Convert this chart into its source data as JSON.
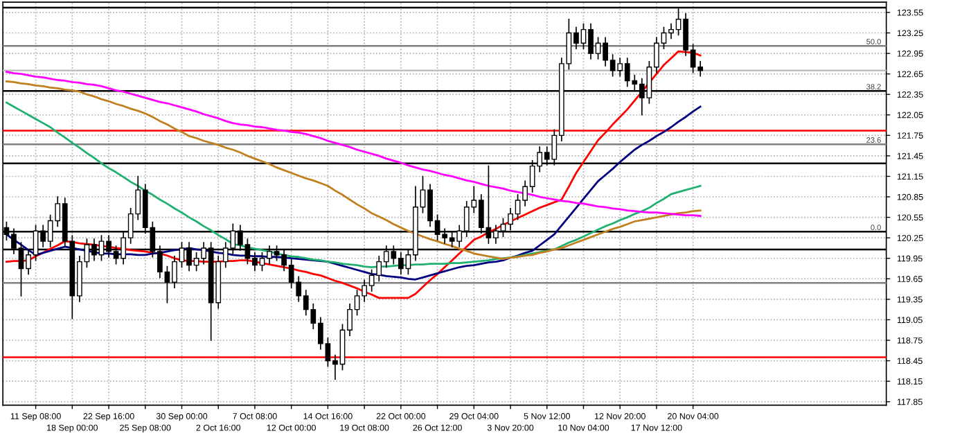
{
  "chart_data": {
    "type": "candlestick",
    "categories": [
      null,
      null,
      null,
      null,
      "11 Sep 08:00",
      null,
      null,
      null,
      null,
      "18 Sep 00:00",
      null,
      null,
      null,
      null,
      "22 Sep 16:00",
      null,
      null,
      null,
      null,
      "25 Sep 08:00",
      null,
      null,
      null,
      null,
      "30 Sep 00:00",
      null,
      null,
      null,
      null,
      "2 Oct 16:00",
      null,
      null,
      null,
      null,
      "7 Oct 08:00",
      null,
      null,
      null,
      null,
      "12 Oct 00:00",
      null,
      null,
      null,
      null,
      "14 Oct 16:00",
      null,
      null,
      null,
      null,
      "19 Oct 08:00",
      null,
      null,
      null,
      null,
      "22 Oct 00:00",
      null,
      null,
      null,
      null,
      "26 Oct 12:00",
      null,
      null,
      null,
      null,
      "29 Oct 04:00",
      null,
      null,
      null,
      null,
      "3 Nov 20:00",
      null,
      null,
      null,
      null,
      "5 Nov 12:00",
      null,
      null,
      null,
      null,
      "10 Nov 04:00",
      null,
      null,
      null,
      null,
      "12 Nov 20:00",
      null,
      null,
      null,
      null,
      "17 Nov 12:00",
      null,
      null,
      null,
      null,
      "20 Nov 04:00",
      null
    ],
    "color": "#000000",
    "ohlc": [
      [
        120.4,
        120.48,
        120.22,
        120.3
      ],
      [
        120.3,
        120.38,
        120.02,
        120.1
      ],
      [
        120.1,
        120.18,
        119.4,
        119.8
      ],
      [
        119.8,
        120.08,
        119.72,
        120.0
      ],
      [
        120.0,
        120.43,
        119.92,
        120.35
      ],
      [
        120.35,
        120.43,
        120.12,
        120.2
      ],
      [
        120.2,
        120.58,
        120.12,
        120.5
      ],
      [
        120.5,
        120.85,
        120.42,
        120.75
      ],
      [
        120.75,
        120.83,
        120.12,
        120.2
      ],
      [
        120.2,
        120.28,
        119.07,
        119.4
      ],
      [
        119.4,
        119.98,
        119.32,
        119.9
      ],
      [
        119.9,
        120.23,
        119.82,
        120.15
      ],
      [
        120.15,
        120.23,
        119.92,
        120.0
      ],
      [
        120.0,
        120.28,
        119.92,
        120.2
      ],
      [
        120.2,
        120.28,
        119.97,
        120.05
      ],
      [
        120.05,
        120.13,
        119.87,
        119.95
      ],
      [
        119.95,
        120.33,
        119.87,
        120.25
      ],
      [
        120.25,
        120.68,
        120.17,
        120.6
      ],
      [
        120.6,
        121.15,
        120.52,
        120.95
      ],
      [
        120.95,
        121.03,
        120.32,
        120.4
      ],
      [
        120.4,
        120.48,
        119.97,
        120.05
      ],
      [
        120.05,
        120.13,
        119.67,
        119.75
      ],
      [
        119.75,
        119.83,
        119.3,
        119.6
      ],
      [
        119.6,
        119.98,
        119.52,
        119.9
      ],
      [
        119.9,
        120.18,
        119.82,
        120.1
      ],
      [
        120.1,
        120.18,
        119.77,
        119.85
      ],
      [
        119.85,
        120.03,
        119.77,
        119.95
      ],
      [
        119.95,
        120.18,
        119.87,
        120.1
      ],
      [
        120.1,
        120.18,
        118.75,
        119.3
      ],
      [
        119.3,
        119.98,
        119.22,
        119.9
      ],
      [
        119.9,
        120.18,
        119.82,
        120.1
      ],
      [
        120.1,
        120.45,
        120.02,
        120.35
      ],
      [
        120.35,
        120.43,
        120.07,
        120.15
      ],
      [
        120.15,
        120.23,
        119.87,
        119.95
      ],
      [
        119.95,
        120.03,
        119.77,
        119.85
      ],
      [
        119.85,
        120.03,
        119.77,
        119.95
      ],
      [
        119.95,
        120.13,
        119.87,
        120.05
      ],
      [
        120.05,
        120.13,
        119.92,
        120.0
      ],
      [
        120.0,
        120.08,
        119.77,
        119.85
      ],
      [
        119.85,
        119.93,
        119.52,
        119.6
      ],
      [
        119.6,
        119.68,
        119.32,
        119.4
      ],
      [
        119.4,
        119.48,
        119.12,
        119.2
      ],
      [
        119.2,
        119.28,
        118.92,
        119.0
      ],
      [
        119.0,
        119.08,
        118.62,
        118.7
      ],
      [
        118.7,
        118.78,
        118.37,
        118.45
      ],
      [
        118.45,
        118.53,
        118.18,
        118.4
      ],
      [
        118.4,
        118.98,
        118.32,
        118.9
      ],
      [
        118.9,
        119.28,
        118.82,
        119.2
      ],
      [
        119.2,
        119.48,
        119.12,
        119.4
      ],
      [
        119.4,
        119.63,
        119.32,
        119.55
      ],
      [
        119.55,
        119.78,
        119.47,
        119.7
      ],
      [
        119.7,
        119.98,
        119.62,
        119.9
      ],
      [
        119.9,
        120.13,
        119.82,
        120.05
      ],
      [
        120.05,
        120.13,
        119.87,
        119.95
      ],
      [
        119.95,
        120.03,
        119.72,
        119.8
      ],
      [
        119.8,
        120.08,
        119.72,
        120.0
      ],
      [
        120.0,
        121.0,
        119.92,
        120.7
      ],
      [
        120.7,
        121.15,
        120.62,
        120.95
      ],
      [
        120.95,
        121.03,
        120.42,
        120.5
      ],
      [
        120.5,
        120.58,
        120.22,
        120.3
      ],
      [
        120.3,
        120.38,
        120.17,
        120.25
      ],
      [
        120.25,
        120.33,
        120.12,
        120.2
      ],
      [
        120.2,
        120.43,
        120.12,
        120.35
      ],
      [
        120.35,
        120.78,
        120.27,
        120.7
      ],
      [
        120.7,
        121.0,
        120.62,
        120.8
      ],
      [
        120.8,
        120.88,
        120.32,
        120.4
      ],
      [
        120.4,
        121.3,
        120.17,
        120.25
      ],
      [
        120.25,
        120.43,
        120.17,
        120.35
      ],
      [
        120.35,
        120.53,
        120.27,
        120.45
      ],
      [
        120.45,
        120.68,
        120.37,
        120.6
      ],
      [
        120.6,
        120.88,
        120.52,
        120.8
      ],
      [
        120.8,
        121.08,
        120.72,
        121.0
      ],
      [
        121.0,
        121.38,
        120.92,
        121.3
      ],
      [
        121.3,
        121.58,
        121.22,
        121.5
      ],
      [
        121.5,
        121.58,
        121.32,
        121.4
      ],
      [
        121.4,
        121.83,
        121.32,
        121.75
      ],
      [
        121.75,
        122.88,
        121.67,
        122.8
      ],
      [
        122.8,
        123.45,
        122.72,
        123.25
      ],
      [
        123.25,
        123.33,
        123.02,
        123.1
      ],
      [
        123.1,
        123.38,
        123.02,
        123.3
      ],
      [
        123.3,
        123.38,
        122.87,
        122.95
      ],
      [
        122.95,
        123.18,
        122.87,
        123.1
      ],
      [
        123.1,
        123.18,
        122.77,
        122.85
      ],
      [
        122.85,
        122.93,
        122.62,
        122.7
      ],
      [
        122.7,
        122.88,
        122.62,
        122.8
      ],
      [
        122.8,
        122.88,
        122.47,
        122.55
      ],
      [
        122.55,
        122.63,
        122.42,
        122.5
      ],
      [
        122.5,
        122.58,
        122.05,
        122.3
      ],
      [
        122.3,
        122.83,
        122.22,
        122.75
      ],
      [
        122.75,
        123.18,
        122.67,
        123.1
      ],
      [
        123.1,
        123.33,
        123.02,
        123.25
      ],
      [
        123.25,
        123.38,
        123.17,
        123.3
      ],
      [
        123.3,
        123.6,
        123.22,
        123.45
      ],
      [
        123.45,
        123.53,
        122.92,
        123.0
      ],
      [
        123.0,
        123.08,
        122.67,
        122.75
      ],
      [
        122.75,
        122.83,
        122.62,
        122.7
      ]
    ],
    "series": [
      {
        "type": "line",
        "color": "#ff0000",
        "values": [
          119.9,
          119.91,
          119.91,
          119.92,
          119.98,
          120.03,
          120.09,
          120.14,
          120.2,
          120.19,
          120.17,
          120.16,
          120.15,
          120.13,
          120.12,
          120.1,
          120.09,
          120.07,
          120.06,
          120.05,
          120.03,
          120.02,
          119.99,
          119.95,
          119.92,
          119.91,
          119.91,
          119.9,
          119.9,
          119.9,
          119.91,
          119.91,
          119.92,
          119.92,
          119.9,
          119.88,
          119.86,
          119.84,
          119.82,
          119.8,
          119.77,
          119.75,
          119.72,
          119.7,
          119.66,
          119.62,
          119.59,
          119.55,
          119.51,
          119.46,
          119.42,
          119.37,
          119.37,
          119.37,
          119.37,
          119.37,
          119.43,
          119.53,
          119.63,
          119.72,
          119.82,
          119.92,
          120.02,
          120.12,
          120.22,
          120.27,
          120.33,
          120.38,
          120.44,
          120.49,
          120.54,
          120.59,
          120.64,
          120.69,
          120.73,
          120.77,
          120.81,
          121.0,
          121.2,
          121.36,
          121.52,
          121.68,
          121.79,
          121.91,
          122.02,
          122.13,
          122.26,
          122.39,
          122.52,
          122.65,
          122.78,
          122.88,
          122.98,
          122.97,
          122.96,
          122.92
        ]
      },
      {
        "type": "line",
        "color": "#000080",
        "values": [
          120.3,
          120.22,
          120.15,
          120.07,
          120.0,
          120.03,
          120.06,
          120.09,
          120.12,
          120.1,
          120.08,
          120.06,
          120.04,
          120.02,
          120.02,
          120.01,
          120.01,
          120.01,
          120.0,
          120.0,
          120.02,
          120.03,
          120.05,
          120.07,
          120.08,
          120.1,
          120.08,
          120.07,
          120.05,
          120.03,
          120.02,
          120.0,
          119.99,
          119.99,
          119.98,
          119.98,
          119.97,
          119.97,
          119.96,
          119.95,
          119.94,
          119.93,
          119.92,
          119.91,
          119.9,
          119.87,
          119.84,
          119.81,
          119.78,
          119.75,
          119.72,
          119.71,
          119.69,
          119.68,
          119.67,
          119.65,
          119.64,
          119.67,
          119.7,
          119.73,
          119.76,
          119.79,
          119.82,
          119.84,
          119.85,
          119.87,
          119.89,
          119.9,
          119.92,
          119.96,
          119.99,
          120.03,
          120.06,
          120.14,
          120.22,
          120.3,
          120.43,
          120.56,
          120.69,
          120.82,
          120.95,
          121.08,
          121.17,
          121.26,
          121.36,
          121.45,
          121.54,
          121.61,
          121.67,
          121.74,
          121.8,
          121.87,
          121.95,
          122.02,
          122.1,
          122.17
        ]
      },
      {
        "type": "line",
        "color": "#20b070",
        "values": [
          122.23,
          122.17,
          122.11,
          122.05,
          121.99,
          121.93,
          121.87,
          121.79,
          121.72,
          121.64,
          121.57,
          121.49,
          121.42,
          121.34,
          121.27,
          121.21,
          121.14,
          121.07,
          121.01,
          120.94,
          120.88,
          120.81,
          120.75,
          120.68,
          120.62,
          120.55,
          120.49,
          120.42,
          120.36,
          120.29,
          120.23,
          120.16,
          120.14,
          120.11,
          120.09,
          120.07,
          120.05,
          120.02,
          120.0,
          119.98,
          119.97,
          119.95,
          119.93,
          119.92,
          119.9,
          119.89,
          119.87,
          119.86,
          119.85,
          119.83,
          119.82,
          119.83,
          119.83,
          119.84,
          119.85,
          119.85,
          119.86,
          119.86,
          119.87,
          119.87,
          119.87,
          119.88,
          119.88,
          119.89,
          119.9,
          119.91,
          119.92,
          119.94,
          119.95,
          119.96,
          119.98,
          120.0,
          120.02,
          120.04,
          120.06,
          120.08,
          120.13,
          120.18,
          120.22,
          120.27,
          120.32,
          120.37,
          120.42,
          120.46,
          120.51,
          120.55,
          120.6,
          120.64,
          120.69,
          120.76,
          120.82,
          120.89,
          120.92,
          120.95,
          120.98,
          121.01
        ]
      },
      {
        "type": "line",
        "color": "#c08020",
        "values": [
          122.54,
          122.53,
          122.51,
          122.5,
          122.48,
          122.47,
          122.45,
          122.44,
          122.42,
          122.41,
          122.39,
          122.35,
          122.32,
          122.28,
          122.25,
          122.21,
          122.18,
          122.14,
          122.11,
          122.07,
          122.02,
          121.96,
          121.91,
          121.85,
          121.8,
          121.74,
          121.71,
          121.67,
          121.64,
          121.61,
          121.57,
          121.54,
          121.5,
          121.45,
          121.41,
          121.37,
          121.33,
          121.28,
          121.24,
          121.2,
          121.16,
          121.12,
          121.09,
          121.05,
          121.01,
          120.94,
          120.88,
          120.81,
          120.74,
          120.68,
          120.61,
          120.56,
          120.51,
          120.45,
          120.4,
          120.35,
          120.31,
          120.27,
          120.23,
          120.2,
          120.16,
          120.13,
          120.09,
          120.06,
          120.02,
          120.0,
          119.98,
          119.96,
          119.94,
          119.96,
          119.97,
          119.99,
          120.0,
          120.03,
          120.05,
          120.08,
          120.1,
          120.14,
          120.18,
          120.22,
          120.26,
          120.3,
          120.34,
          120.38,
          120.41,
          120.45,
          120.49,
          120.51,
          120.53,
          120.55,
          120.57,
          120.59,
          120.61,
          120.62,
          120.64,
          120.65
        ]
      },
      {
        "type": "line",
        "color": "#ff00ff",
        "values": [
          122.68,
          122.66,
          122.65,
          122.63,
          122.61,
          122.6,
          122.58,
          122.56,
          122.55,
          122.53,
          122.52,
          122.5,
          122.49,
          122.47,
          122.44,
          122.41,
          122.39,
          122.36,
          122.33,
          122.3,
          122.27,
          122.24,
          122.22,
          122.19,
          122.16,
          122.13,
          122.1,
          122.06,
          122.03,
          122.0,
          121.96,
          121.93,
          121.91,
          121.9,
          121.88,
          121.87,
          121.85,
          121.83,
          121.82,
          121.8,
          121.79,
          121.77,
          121.74,
          121.71,
          121.67,
          121.64,
          121.61,
          121.58,
          121.54,
          121.51,
          121.48,
          121.45,
          121.41,
          121.38,
          121.35,
          121.31,
          121.28,
          121.25,
          121.23,
          121.2,
          121.17,
          121.15,
          121.12,
          121.09,
          121.07,
          121.04,
          121.01,
          120.99,
          120.97,
          120.94,
          120.92,
          120.9,
          120.88,
          120.85,
          120.83,
          120.81,
          120.79,
          120.78,
          120.76,
          120.75,
          120.73,
          120.71,
          120.7,
          120.68,
          120.67,
          120.65,
          120.64,
          120.63,
          120.62,
          120.62,
          120.61,
          120.6,
          120.59,
          120.58,
          120.58,
          120.57
        ]
      }
    ],
    "ref_lines": [
      {
        "axis": "y",
        "value": 123.62,
        "color": "#000000"
      },
      {
        "axis": "y",
        "value": 123.06,
        "color": "#808080"
      },
      {
        "axis": "y",
        "value": 122.7,
        "color": "#c0c0c0"
      },
      {
        "axis": "y",
        "value": 122.4,
        "color": "#000000"
      },
      {
        "axis": "y",
        "value": 121.82,
        "color": "#ff0000"
      },
      {
        "axis": "y",
        "value": 121.62,
        "color": "#808080"
      },
      {
        "axis": "y",
        "value": 121.34,
        "color": "#000000"
      },
      {
        "axis": "y",
        "value": 120.34,
        "color": "#000000"
      },
      {
        "axis": "y",
        "value": 120.08,
        "color": "#000000"
      },
      {
        "axis": "y",
        "value": 119.59,
        "color": "#808080"
      },
      {
        "axis": "y",
        "value": 118.5,
        "color": "#ff0000"
      }
    ],
    "annotations": [
      {
        "text": "50.0",
        "y": 123.06
      },
      {
        "text": "38.2",
        "y": 122.4
      },
      {
        "text": "23.6",
        "y": 121.62
      },
      {
        "text": "0.0",
        "y": 120.34
      }
    ],
    "ylim": [
      117.8,
      123.7
    ],
    "yticks": [
      117.85,
      118.15,
      118.45,
      118.75,
      119.05,
      119.35,
      119.65,
      119.95,
      120.25,
      120.55,
      120.85,
      121.15,
      121.45,
      121.75,
      122.05,
      122.35,
      122.65,
      122.95,
      123.25,
      123.55
    ],
    "grid": true
  }
}
